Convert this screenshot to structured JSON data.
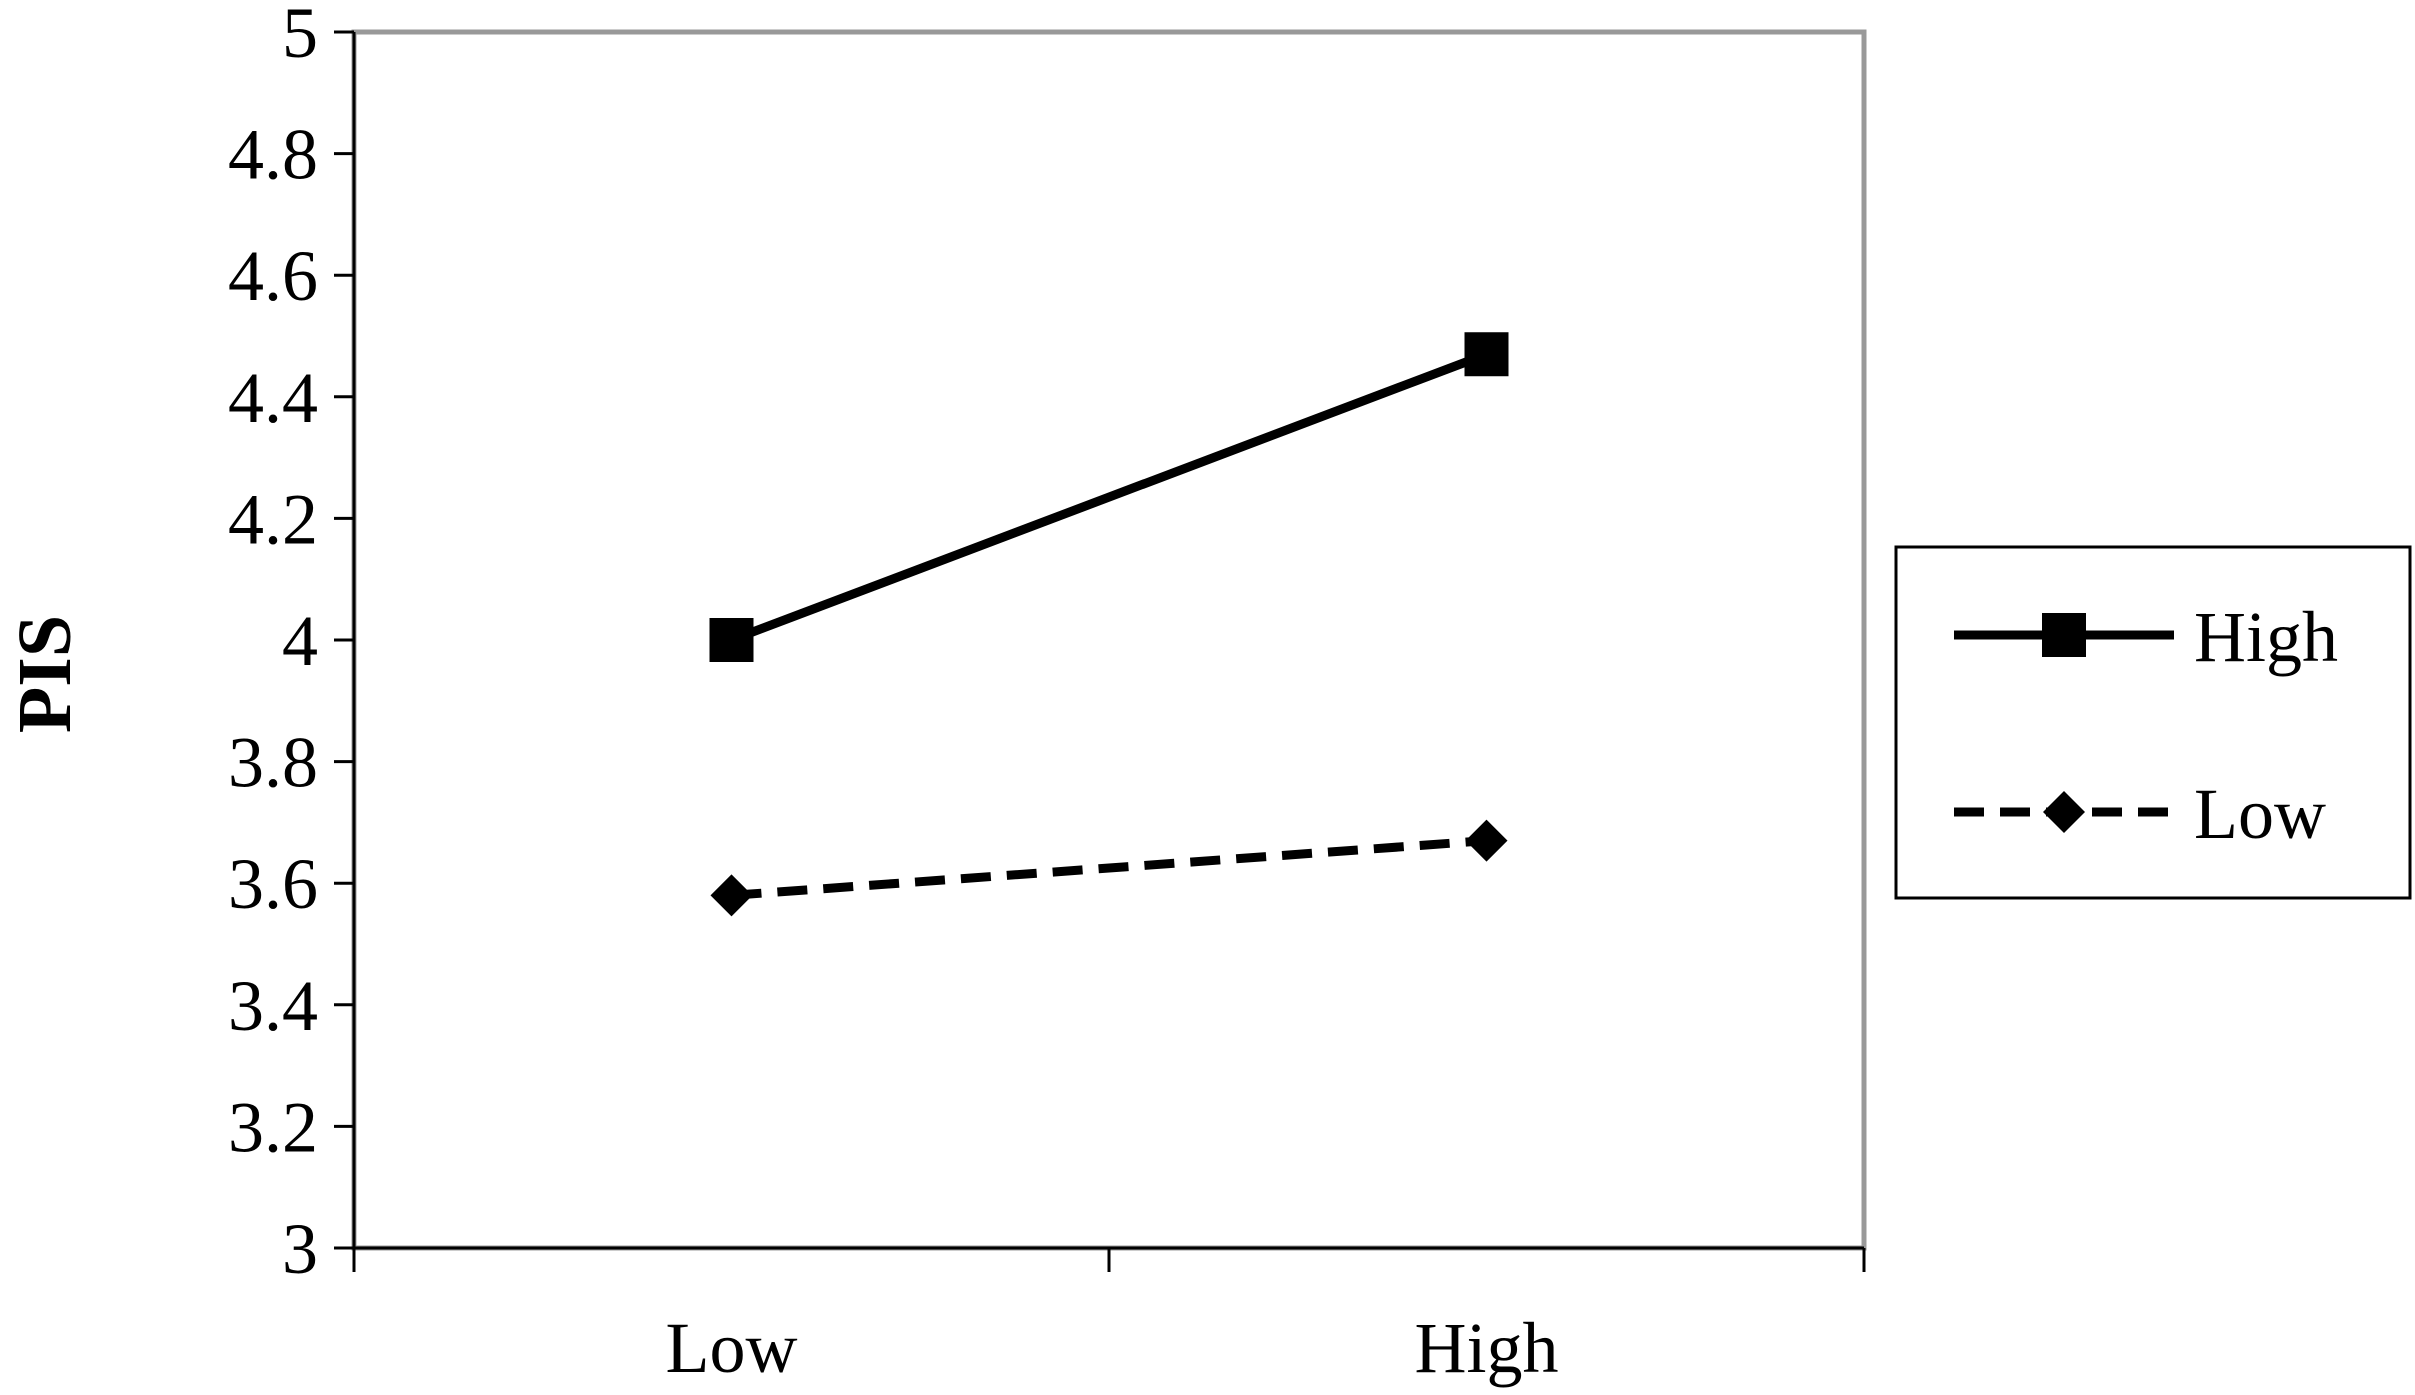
{
  "chart_data": {
    "type": "line",
    "title": "",
    "xlabel": "",
    "ylabel": "PIS",
    "categories": [
      "Low",
      "High"
    ],
    "ylim": [
      3,
      5
    ],
    "yticks": [
      "3",
      "3.2",
      "3.4",
      "3.6",
      "3.8",
      "4",
      "4.2",
      "4.4",
      "4.6",
      "4.8",
      "5"
    ],
    "ytick_values": [
      3,
      3.2,
      3.4,
      3.6,
      3.8,
      4,
      4.2,
      4.4,
      4.6,
      4.8,
      5
    ],
    "grid": false,
    "legend_position": "right",
    "series": [
      {
        "name": "High",
        "values": [
          4.0,
          4.47
        ],
        "line_style": "solid",
        "marker": "square",
        "color": "#000000"
      },
      {
        "name": "Low",
        "values": [
          3.58,
          3.67
        ],
        "line_style": "dashed",
        "marker": "diamond",
        "color": "#000000"
      }
    ],
    "plot_border_color": "#999999"
  }
}
